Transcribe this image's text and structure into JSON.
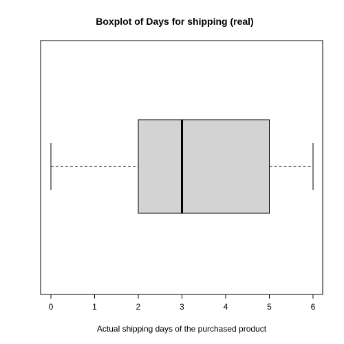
{
  "chart_data": {
    "type": "boxplot",
    "orientation": "horizontal",
    "title": "Boxplot of Days for shipping (real)",
    "xlabel": "Actual shipping days of the purchased product",
    "ylabel": "",
    "xlim": [
      0,
      6
    ],
    "xticks": [
      0,
      1,
      2,
      3,
      4,
      5,
      6
    ],
    "xtick_labels": [
      "0",
      "1",
      "2",
      "3",
      "4",
      "5",
      "6"
    ],
    "grid": false,
    "box": {
      "min": 0,
      "q1": 2,
      "median": 3,
      "q3": 5,
      "max": 6
    },
    "colors": {
      "box_fill": "#d3d3d3",
      "line": "#000000"
    }
  }
}
